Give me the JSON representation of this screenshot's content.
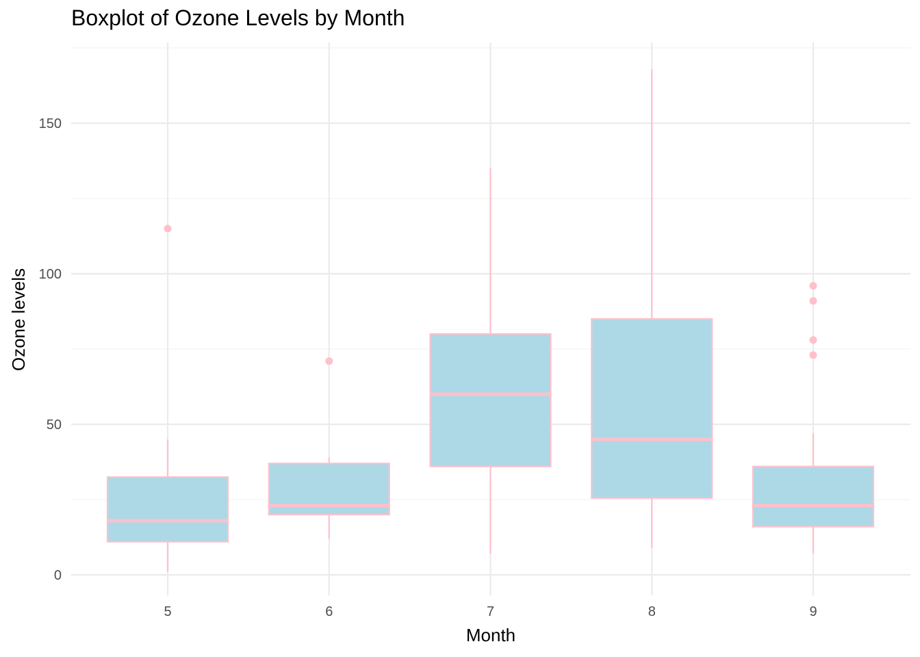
{
  "chart_data": {
    "type": "boxplot",
    "title": "Boxplot of Ozone Levels by Month",
    "xlabel": "Month",
    "ylabel": "Ozone levels",
    "ylim": [
      -7,
      176
    ],
    "yticks": [
      0,
      50,
      100,
      150
    ],
    "categories": [
      "5",
      "6",
      "7",
      "8",
      "9"
    ],
    "boxes": [
      {
        "category": "5",
        "lower_whisker": 1,
        "q1": 11,
        "median": 18,
        "q3": 32.5,
        "upper_whisker": 45,
        "outliers": [
          115
        ]
      },
      {
        "category": "6",
        "lower_whisker": 12,
        "q1": 20,
        "median": 23,
        "q3": 37,
        "upper_whisker": 39,
        "outliers": [
          71
        ]
      },
      {
        "category": "7",
        "lower_whisker": 7,
        "q1": 36,
        "median": 60,
        "q3": 80,
        "upper_whisker": 135,
        "outliers": []
      },
      {
        "category": "8",
        "lower_whisker": 9,
        "q1": 25.5,
        "median": 45,
        "q3": 85,
        "upper_whisker": 168,
        "outliers": []
      },
      {
        "category": "9",
        "lower_whisker": 7,
        "q1": 16,
        "median": 23,
        "q3": 36,
        "upper_whisker": 47,
        "outliers": [
          73,
          78,
          91,
          96
        ]
      }
    ],
    "grid": true,
    "legend": "none",
    "colors": {
      "box_fill": "#add8e6",
      "box_outline": "#ffc0cb",
      "grid_major": "#ebebeb",
      "grid_minor": "#f3f3f3"
    }
  }
}
